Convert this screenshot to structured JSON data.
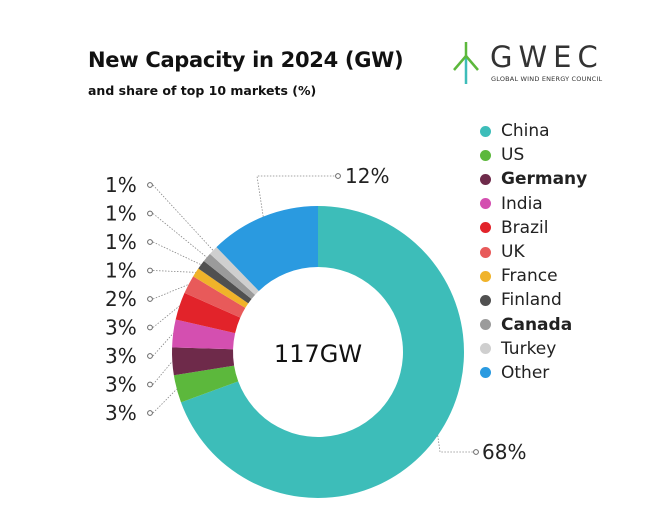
{
  "header": {
    "title": "New Capacity in 2024 (GW)",
    "subtitle": "and share of top 10 markets (%)"
  },
  "logo": {
    "word": "GWEC",
    "tagline": "GLOBAL WIND ENERGY COUNCIL",
    "icon": "wind-turbine-icon"
  },
  "chart_data": {
    "type": "pie",
    "variant": "donut",
    "center_label": "117GW",
    "total_gw": 117,
    "categories": [
      "China",
      "US",
      "Germany",
      "India",
      "Brazil",
      "UK",
      "France",
      "Finland",
      "Canada",
      "Turkey",
      "Other"
    ],
    "values": [
      68,
      3,
      3,
      3,
      3,
      2,
      1,
      1,
      1,
      1,
      12
    ],
    "value_labels": [
      "68%",
      "3%",
      "3%",
      "3%",
      "3%",
      "2%",
      "1%",
      "1%",
      "1%",
      "1%",
      "12%"
    ],
    "colors": [
      "#3dbdb9",
      "#5cb83c",
      "#6e2a4a",
      "#d44fb0",
      "#e2232a",
      "#e85a5a",
      "#f0b32a",
      "#505050",
      "#9b9b9b",
      "#cfcfcf",
      "#2a9ae0"
    ],
    "legend_bold": [
      false,
      false,
      true,
      false,
      false,
      false,
      false,
      false,
      true,
      false,
      false
    ],
    "legend_position": "right"
  }
}
